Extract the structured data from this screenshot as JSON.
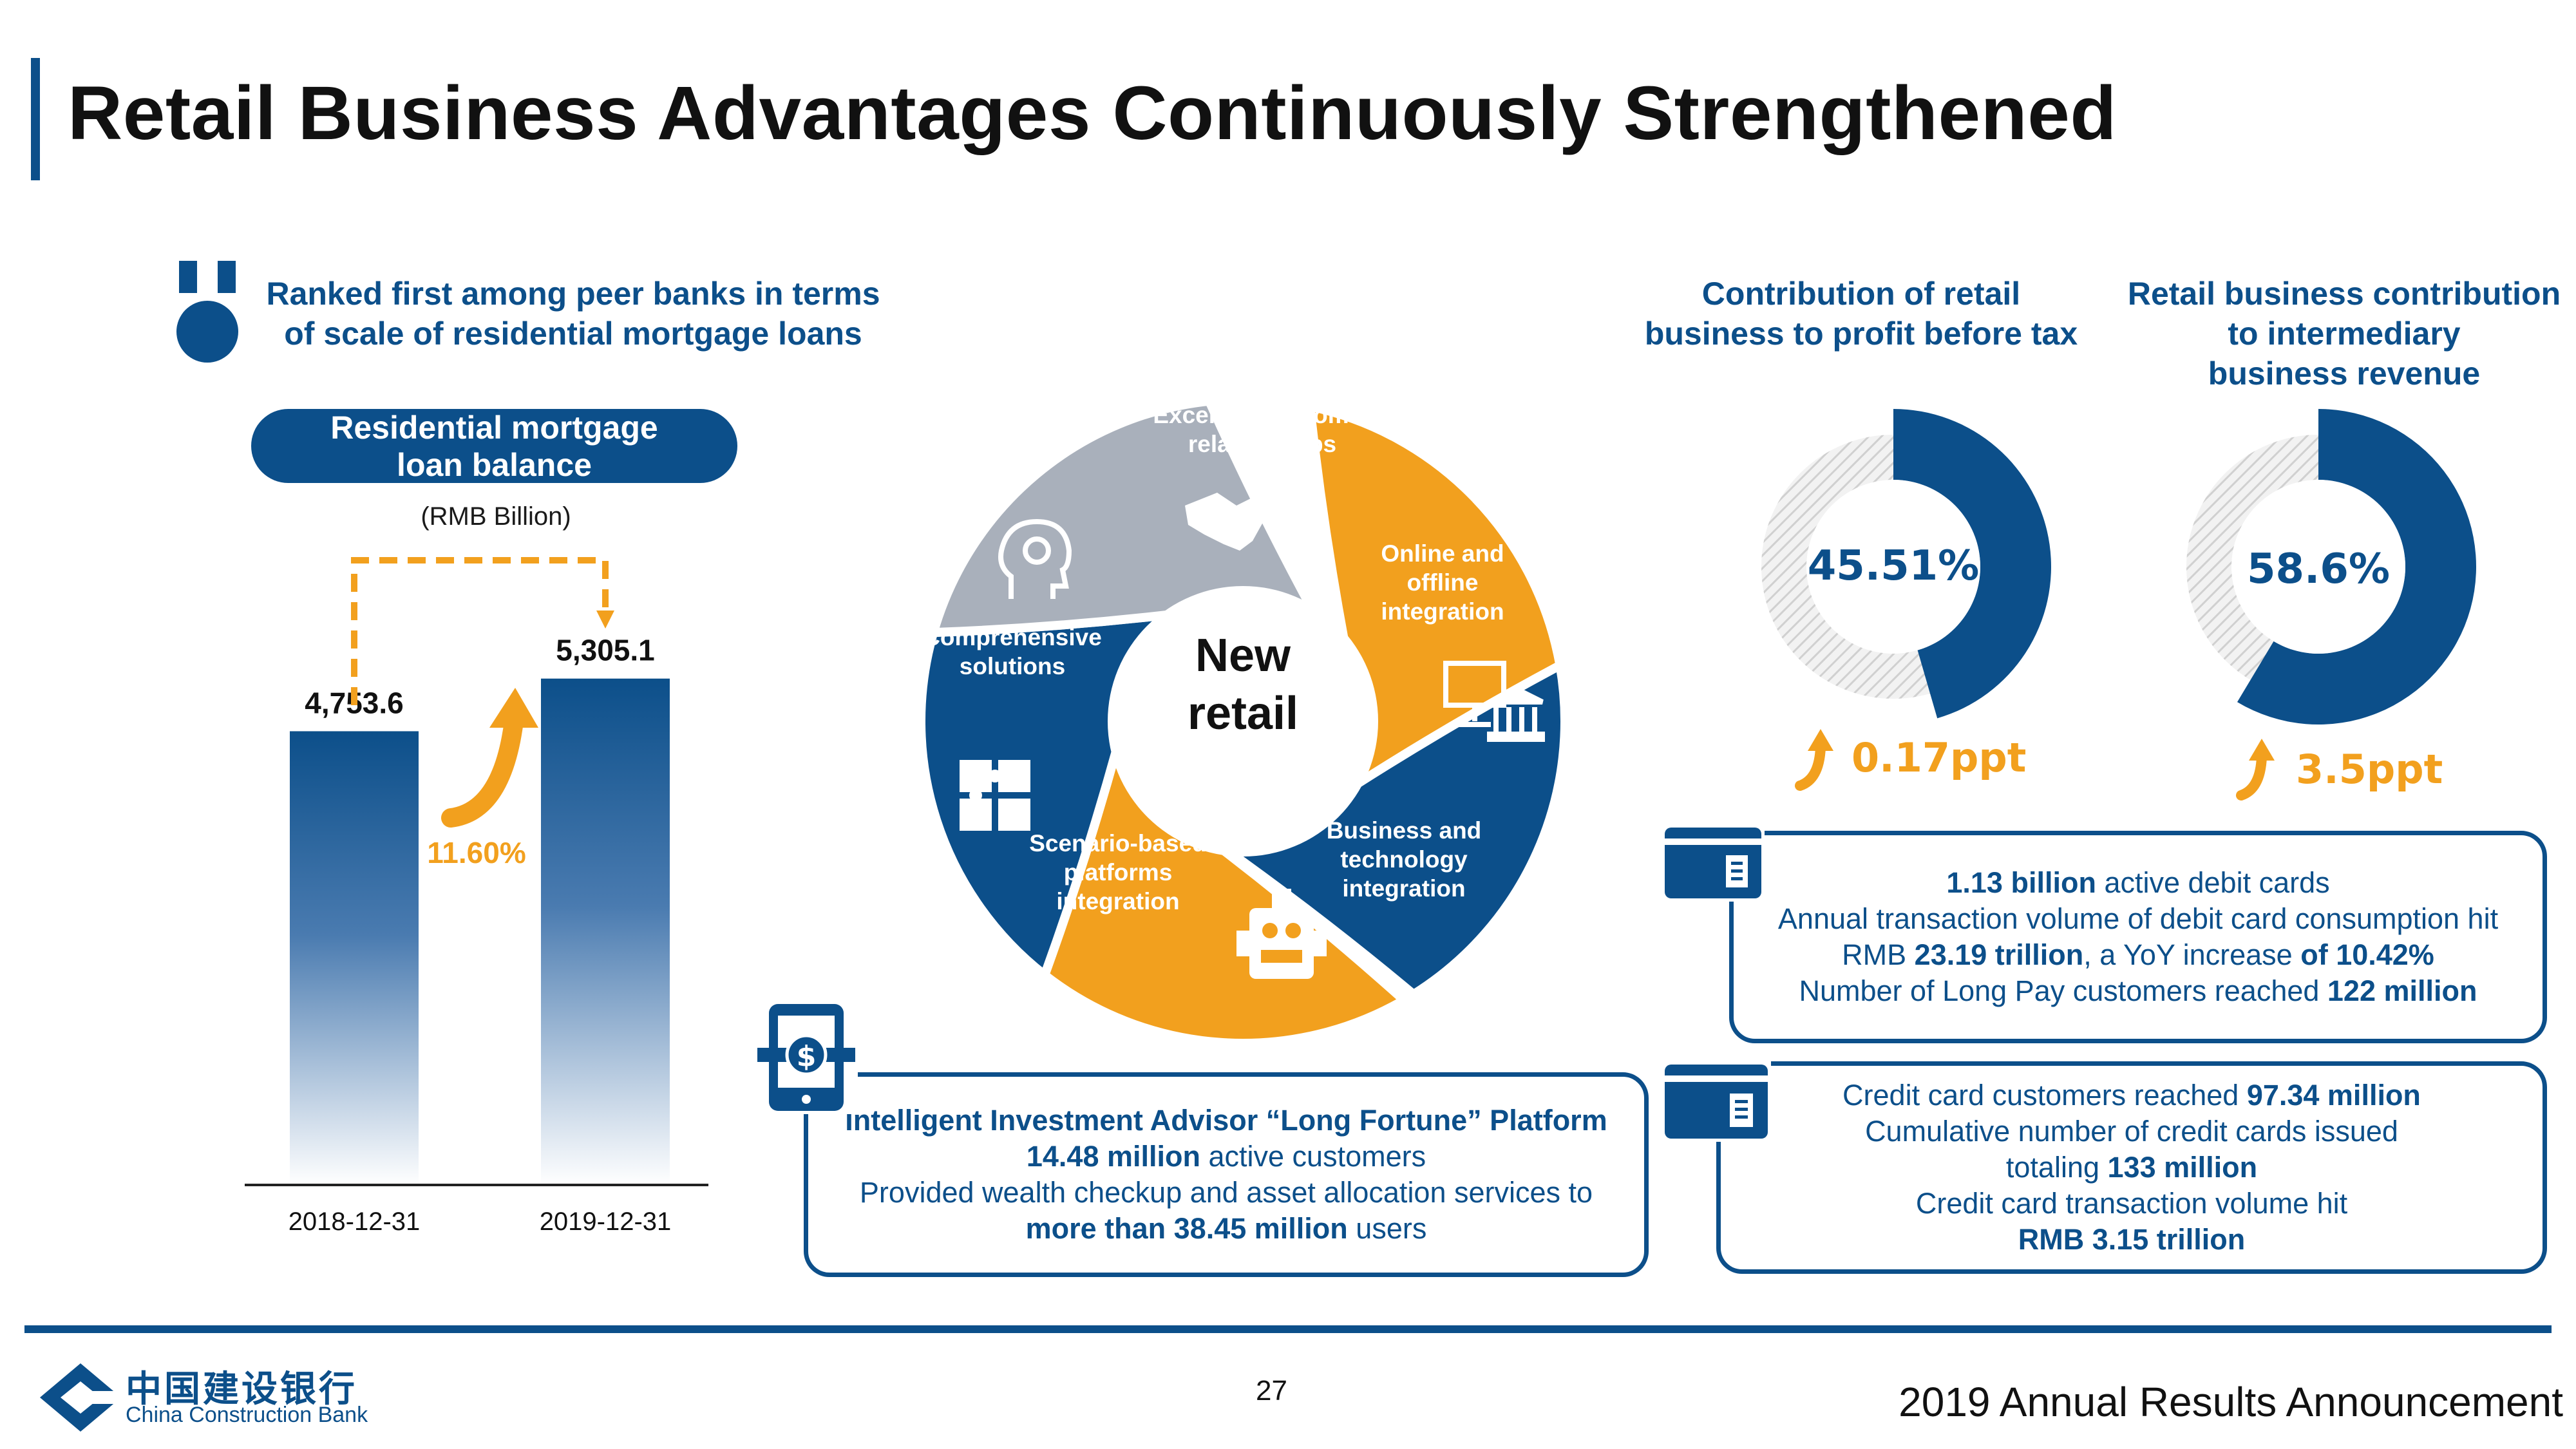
{
  "page": {
    "title": "Retail Business Advantages Continuously Strengthened",
    "page_number": "27",
    "footer_right": "2019 Annual Results Announcement",
    "logo_cn": "中国建设银行",
    "logo_en": "China Construction Bank"
  },
  "colors": {
    "brand_blue": "#0c4f8a",
    "accent_orange": "#f2a01e",
    "gray": "#a9b0bb"
  },
  "mortgage": {
    "rank_line1": "Ranked first among peer banks in terms",
    "rank_line2": "of scale of residential mortgage loans",
    "pill_line1": "Residential mortgage",
    "pill_line2": "loan balance",
    "unit": "(RMB Billion)",
    "growth": "11.60%"
  },
  "chart_data": {
    "type": "bar",
    "title": "Residential mortgage loan balance",
    "ylabel": "(RMB Billion)",
    "categories": [
      "2018-12-31",
      "2019-12-31"
    ],
    "values": [
      4753.6,
      5305.1
    ],
    "value_labels": [
      "4,753.6",
      "5,305.1"
    ],
    "ylim": [
      0,
      5600
    ],
    "annotations": [
      "11.60%"
    ]
  },
  "wheel": {
    "center_line1": "New",
    "center_line2": "retail",
    "segments": [
      {
        "line1": "Excellent customer",
        "line2": "relationships",
        "line3": "",
        "icon": "handshake-icon",
        "color": "#f2a01e"
      },
      {
        "line1": "Online and",
        "line2": "offline",
        "line3": "integration",
        "icon": "bank-building-icon",
        "color": "#0c4f8a"
      },
      {
        "line1": "Business and",
        "line2": "technology",
        "line3": "integration",
        "icon": "robot-icon",
        "color": "#f2a01e"
      },
      {
        "line1": "Scenario-based",
        "line2": "platforms",
        "line3": "integration",
        "icon": "puzzle-icon",
        "color": "#0c4f8a"
      },
      {
        "line1": "Comprehensive",
        "line2": "solutions",
        "line3": "",
        "icon": "head-gear-icon",
        "color": "#a9b0bb"
      }
    ]
  },
  "donuts": [
    {
      "heading_line1": "Contribution of retail",
      "heading_line2": "business to profit before tax",
      "heading_line3": "",
      "value": 45.51,
      "label": "45.51%",
      "delta": "0.17ppt"
    },
    {
      "heading_line1": "Retail business contribution",
      "heading_line2": "to intermediary",
      "heading_line3": "business revenue",
      "value": 58.6,
      "label": "58.6%",
      "delta": "3.5ppt"
    }
  ],
  "advisor": {
    "line1": "Intelligent Investment Advisor “Long Fortune” Platform",
    "line2_bold": "14.48 million",
    "line2_rest": " active customers",
    "line3": "Provided wealth checkup and asset allocation services to",
    "line4_bold": "more than 38.45 million",
    "line4_rest": " users"
  },
  "debit": {
    "l1_bold": "1.13 billion",
    "l1_rest": " active debit cards",
    "l2": "Annual transaction volume of debit card consumption hit",
    "l3_a": "RMB ",
    "l3_b": "23.19 trillion",
    "l3_c": ", a YoY increase ",
    "l3_d": "of 10.42%",
    "l4_a": "Number of Long Pay customers reached ",
    "l4_b": "122 million"
  },
  "credit": {
    "l1_a": "Credit card customers reached ",
    "l1_b": "97.34 million",
    "l2": "Cumulative number of credit cards issued",
    "l3_a": "totaling ",
    "l3_b": "133 million",
    "l4": "Credit card transaction volume hit",
    "l5": "RMB 3.15 trillion"
  }
}
